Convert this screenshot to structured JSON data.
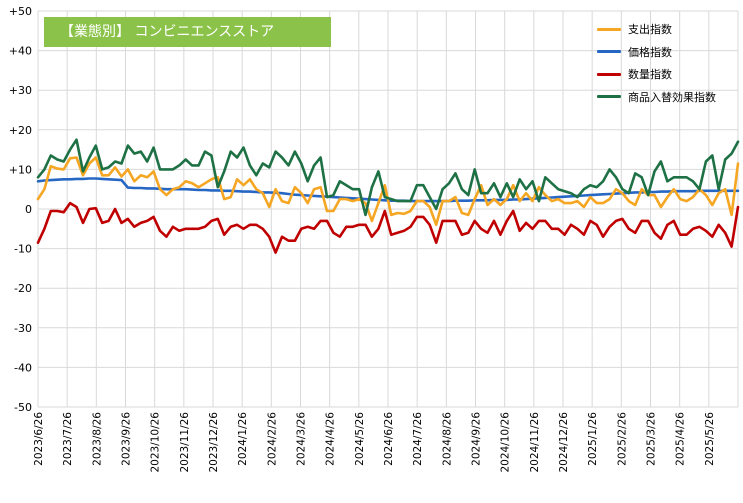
{
  "chart_data": {
    "type": "line",
    "title": "【業態別】 コンビニエンスストア",
    "xlabel": "",
    "ylabel": "",
    "ylim": [
      -50,
      50
    ],
    "y_ticks": [
      "+50",
      "+40",
      "+30",
      "+20",
      "+10",
      "0",
      "-10",
      "-20",
      "-30",
      "-40",
      "-50"
    ],
    "x_ticks": [
      "2023/6/26",
      "2023/7/26",
      "2023/8/26",
      "2023/9/26",
      "2023/10/26",
      "2023/11/26",
      "2023/12/26",
      "2024/1/26",
      "2024/2/26",
      "2024/3/26",
      "2024/4/26",
      "2024/5/26",
      "2024/6/26",
      "2024/7/26",
      "2024/8/26",
      "2024/9/26",
      "2024/10/26",
      "2024/11/26",
      "2024/12/26",
      "2025/1/26",
      "2025/2/26",
      "2025/3/26",
      "2025/4/26",
      "2025/5/26"
    ],
    "grid": true,
    "legend_position": "top-right",
    "series": [
      {
        "name": "支出指数",
        "color": "#F5A623",
        "values": [
          2.5,
          5.0,
          10.8,
          10.2,
          10.0,
          12.8,
          13.0,
          8.5,
          11.5,
          13.0,
          8.5,
          8.5,
          10.5,
          8.2,
          10.0,
          7.0,
          8.5,
          8.0,
          9.5,
          5.0,
          3.5,
          5.0,
          5.5,
          7.0,
          6.5,
          5.5,
          6.5,
          7.5,
          8.0,
          2.5,
          3.0,
          7.5,
          6.0,
          7.5,
          5.0,
          4.0,
          0.5,
          5.0,
          2.0,
          1.5,
          5.5,
          4.0,
          1.5,
          5.0,
          5.5,
          -0.5,
          -0.5,
          2.5,
          2.5,
          2.0,
          2.5,
          1.5,
          -3.0,
          1.5,
          6.0,
          -1.5,
          -1.0,
          -1.2,
          -0.5,
          2.0,
          2.0,
          0.5,
          -4.0,
          2.0,
          2.0,
          3.0,
          -1.0,
          -1.5,
          2.5,
          6.0,
          1.0,
          2.5,
          1.0,
          2.5,
          6.0,
          2.0,
          4.0,
          2.0,
          5.5,
          3.5,
          2.0,
          2.5,
          1.5,
          1.5,
          2.0,
          0.5,
          3.0,
          1.5,
          1.5,
          2.5,
          5.0,
          4.0,
          2.0,
          1.0,
          5.0,
          3.5,
          3.5,
          0.5,
          3.0,
          5.0,
          2.5,
          2.0,
          3.0,
          5.0,
          3.5,
          1.0,
          4.0,
          5.0,
          -1.5,
          11.5
        ]
      },
      {
        "name": "価格指数",
        "color": "#2767C4",
        "values": [
          7.0,
          7.2,
          7.3,
          7.4,
          7.5,
          7.5,
          7.6,
          7.6,
          7.7,
          7.7,
          7.6,
          7.5,
          7.4,
          7.3,
          5.4,
          5.3,
          5.3,
          5.2,
          5.2,
          5.1,
          5.0,
          5.0,
          5.0,
          5.0,
          4.9,
          4.8,
          4.8,
          4.7,
          4.7,
          4.6,
          4.6,
          4.5,
          4.4,
          4.4,
          4.3,
          4.2,
          4.2,
          4.1,
          4.0,
          3.8,
          3.6,
          3.5,
          3.4,
          3.3,
          3.2,
          3.1,
          3.0,
          2.9,
          2.8,
          2.7,
          2.6,
          2.5,
          2.4,
          2.3,
          2.2,
          2.1,
          2.1,
          2.1,
          2.0,
          2.0,
          2.0,
          2.0,
          2.0,
          2.0,
          2.0,
          2.1,
          2.1,
          2.1,
          2.2,
          2.2,
          2.2,
          2.3,
          2.3,
          2.3,
          2.4,
          2.4,
          2.5,
          2.6,
          2.7,
          2.8,
          2.9,
          3.0,
          3.1,
          3.2,
          3.3,
          3.4,
          3.5,
          3.6,
          3.7,
          3.8,
          3.9,
          4.0,
          4.1,
          4.2,
          4.2,
          4.3,
          4.3,
          4.4,
          4.4,
          4.5,
          4.5,
          4.5,
          4.5,
          4.6,
          4.6,
          4.6,
          4.6,
          4.6,
          4.6,
          4.6
        ]
      },
      {
        "name": "数量指数",
        "color": "#C00000",
        "values": [
          -8.5,
          -5.0,
          -0.5,
          -0.5,
          -0.8,
          1.5,
          0.5,
          -3.5,
          0.0,
          0.2,
          -3.5,
          -3.0,
          0.0,
          -3.5,
          -2.5,
          -4.5,
          -3.5,
          -3.0,
          -2.0,
          -5.5,
          -7.0,
          -4.5,
          -5.5,
          -5.0,
          -5.0,
          -5.0,
          -4.5,
          -3.0,
          -2.5,
          -6.5,
          -4.5,
          -4.0,
          -5.0,
          -4.0,
          -4.0,
          -5.0,
          -7.0,
          -11.0,
          -7.0,
          -8.0,
          -8.0,
          -5.0,
          -4.5,
          -5.0,
          -3.0,
          -3.0,
          -6.0,
          -7.0,
          -4.5,
          -4.5,
          -4.0,
          -4.0,
          -7.0,
          -5.0,
          -0.5,
          -6.5,
          -6.0,
          -5.5,
          -4.5,
          -2.0,
          -2.0,
          -4.0,
          -8.5,
          -3.0,
          -3.0,
          -3.0,
          -6.5,
          -6.0,
          -3.0,
          -5.0,
          -6.0,
          -3.0,
          -6.5,
          -3.0,
          -0.5,
          -5.5,
          -3.5,
          -5.0,
          -3.0,
          -3.0,
          -5.0,
          -5.0,
          -6.5,
          -4.0,
          -5.0,
          -6.5,
          -3.0,
          -4.0,
          -7.0,
          -4.5,
          -3.0,
          -2.5,
          -5.0,
          -6.0,
          -3.0,
          -3.0,
          -6.0,
          -7.5,
          -4.0,
          -3.0,
          -6.5,
          -6.5,
          -5.0,
          -4.5,
          -5.5,
          -7.0,
          -4.0,
          -6.0,
          -9.5,
          0.5
        ]
      },
      {
        "name": "商品入替効果指数",
        "color": "#1E7145",
        "values": [
          8.0,
          10.0,
          13.5,
          12.5,
          12.0,
          15.0,
          17.5,
          9.5,
          13.0,
          16.0,
          10.0,
          10.5,
          12.0,
          11.5,
          16.0,
          14.0,
          14.5,
          12.0,
          15.5,
          10.0,
          10.0,
          10.0,
          11.0,
          12.5,
          11.0,
          11.0,
          14.5,
          13.5,
          5.5,
          9.5,
          14.5,
          13.0,
          15.5,
          11.0,
          8.5,
          11.5,
          10.5,
          14.5,
          13.0,
          11.0,
          14.5,
          11.5,
          7.0,
          11.0,
          13.0,
          3.0,
          3.5,
          7.0,
          6.0,
          5.0,
          5.0,
          -1.5,
          5.5,
          9.5,
          3.0,
          2.5,
          2.0,
          2.0,
          2.0,
          6.0,
          6.0,
          3.0,
          0.0,
          5.0,
          6.5,
          9.0,
          5.0,
          3.5,
          10.0,
          4.0,
          4.0,
          6.5,
          3.0,
          6.5,
          3.0,
          7.5,
          5.0,
          7.0,
          2.0,
          8.0,
          6.5,
          5.0,
          4.5,
          4.0,
          3.0,
          5.0,
          6.0,
          5.5,
          7.0,
          10.0,
          8.0,
          5.0,
          4.0,
          9.0,
          8.0,
          3.5,
          9.5,
          12.0,
          7.0,
          8.0,
          8.0,
          8.0,
          7.0,
          5.0,
          12.0,
          13.5,
          5.0,
          12.5,
          14.0,
          17.0
        ]
      }
    ]
  }
}
